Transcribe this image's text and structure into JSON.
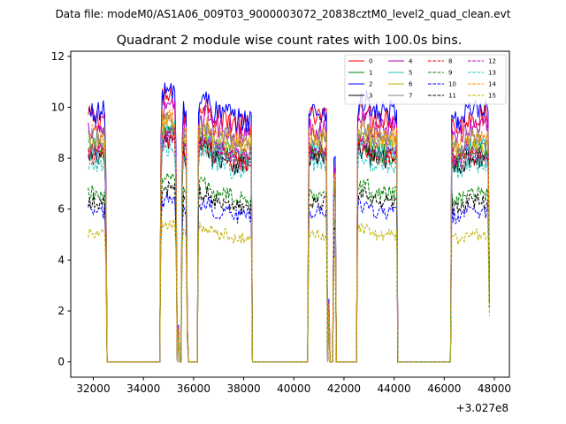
{
  "chart_data": {
    "type": "line",
    "suptitle": "Data file: modeM0/AS1A06_009T03_9000003072_20838cztM0_level2_quad_clean.evt",
    "title": "Quadrant 2 module wise count rates with 100.0s bins.",
    "xlabel": "",
    "ylabel": "",
    "x_offset_label": "+3.027e8",
    "xlim": [
      31100,
      48600
    ],
    "ylim": [
      -0.6,
      12.2
    ],
    "x_ticks": [
      32000,
      34000,
      36000,
      38000,
      40000,
      42000,
      44000,
      46000,
      48000
    ],
    "x_tick_labels": [
      "32000",
      "34000",
      "36000",
      "38000",
      "40000",
      "42000",
      "44000",
      "46000",
      "48000"
    ],
    "y_ticks": [
      0,
      2,
      4,
      6,
      8,
      10,
      12
    ],
    "y_tick_labels": [
      "0",
      "2",
      "4",
      "6",
      "8",
      "10",
      "12"
    ],
    "grid": false,
    "legend_position": "top-right",
    "bin_width": 100,
    "x_start": 31800,
    "x_end": 47800,
    "active_intervals": [
      [
        31800,
        32500
      ],
      [
        34700,
        35300
      ],
      [
        35550,
        35750
      ],
      [
        36200,
        38300
      ],
      [
        40600,
        41300
      ],
      [
        41600,
        41650
      ],
      [
        42550,
        44100
      ],
      [
        46300,
        47800
      ]
    ],
    "transitions": [
      [
        31800,
        1.0,
        "on"
      ],
      [
        32500,
        0.75,
        "on"
      ],
      [
        32600,
        0.0,
        "off"
      ],
      [
        34600,
        0.0,
        "off"
      ],
      [
        34700,
        0.9,
        "on"
      ],
      [
        34800,
        1.05,
        "on"
      ],
      [
        35300,
        0.85,
        "on"
      ],
      [
        35400,
        0.15,
        "on"
      ],
      [
        35450,
        0.0,
        "off"
      ],
      [
        35500,
        0.0,
        "off"
      ],
      [
        35550,
        0.9,
        "on"
      ],
      [
        35650,
        1.0,
        "on"
      ],
      [
        35750,
        0.15,
        "on"
      ],
      [
        35800,
        0.0,
        "off"
      ],
      [
        36100,
        0.0,
        "off"
      ],
      [
        36200,
        1.0,
        "on"
      ],
      [
        38300,
        1.0,
        "on"
      ],
      [
        38400,
        0.0,
        "off"
      ],
      [
        40500,
        0.0,
        "off"
      ],
      [
        40600,
        1.0,
        "on"
      ],
      [
        41300,
        1.0,
        "on"
      ],
      [
        41400,
        0.25,
        "on"
      ],
      [
        41500,
        0.0,
        "off"
      ],
      [
        41550,
        0.0,
        "off"
      ],
      [
        41600,
        0.82,
        "on"
      ],
      [
        41650,
        0.82,
        "on"
      ],
      [
        41750,
        0.0,
        "off"
      ],
      [
        42450,
        0.0,
        "off"
      ],
      [
        42550,
        1.0,
        "on"
      ],
      [
        44100,
        1.0,
        "on"
      ],
      [
        44200,
        0.0,
        "off"
      ],
      [
        46200,
        0.0,
        "off"
      ],
      [
        46300,
        1.0,
        "on"
      ],
      [
        47700,
        1.0,
        "on"
      ],
      [
        47800,
        0.35,
        "on"
      ]
    ],
    "series": [
      {
        "name": "0",
        "color": "#ff0000",
        "dash": "solid",
        "base": 9.6
      },
      {
        "name": "1",
        "color": "#008000",
        "dash": "solid",
        "base": 8.2
      },
      {
        "name": "2",
        "color": "#0000ff",
        "dash": "solid",
        "base": 9.8
      },
      {
        "name": "3",
        "color": "#000000",
        "dash": "solid",
        "base": 8.0
      },
      {
        "name": "4",
        "color": "#bf00bf",
        "dash": "solid",
        "base": 9.2
      },
      {
        "name": "5",
        "color": "#20c0c0",
        "dash": "solid",
        "base": 8.4
      },
      {
        "name": "6",
        "color": "#c0b000",
        "dash": "solid",
        "base": 8.6
      },
      {
        "name": "7",
        "color": "#808080",
        "dash": "solid",
        "base": 8.8
      },
      {
        "name": "8",
        "color": "#ff0000",
        "dash": "dashed",
        "base": 8.1
      },
      {
        "name": "9",
        "color": "#008000",
        "dash": "dashed",
        "base": 6.6
      },
      {
        "name": "10",
        "color": "#0000ff",
        "dash": "dashed",
        "base": 5.9
      },
      {
        "name": "11",
        "color": "#000000",
        "dash": "dashed",
        "base": 6.3
      },
      {
        "name": "12",
        "color": "#bf00bf",
        "dash": "dashed",
        "base": 8.3
      },
      {
        "name": "13",
        "color": "#20c0c0",
        "dash": "dashed",
        "base": 7.8
      },
      {
        "name": "14",
        "color": "#ff8c00",
        "dash": "dashed",
        "base": 8.9
      },
      {
        "name": "15",
        "color": "#c0b000",
        "dash": "dashed",
        "base": 5.0
      }
    ]
  }
}
